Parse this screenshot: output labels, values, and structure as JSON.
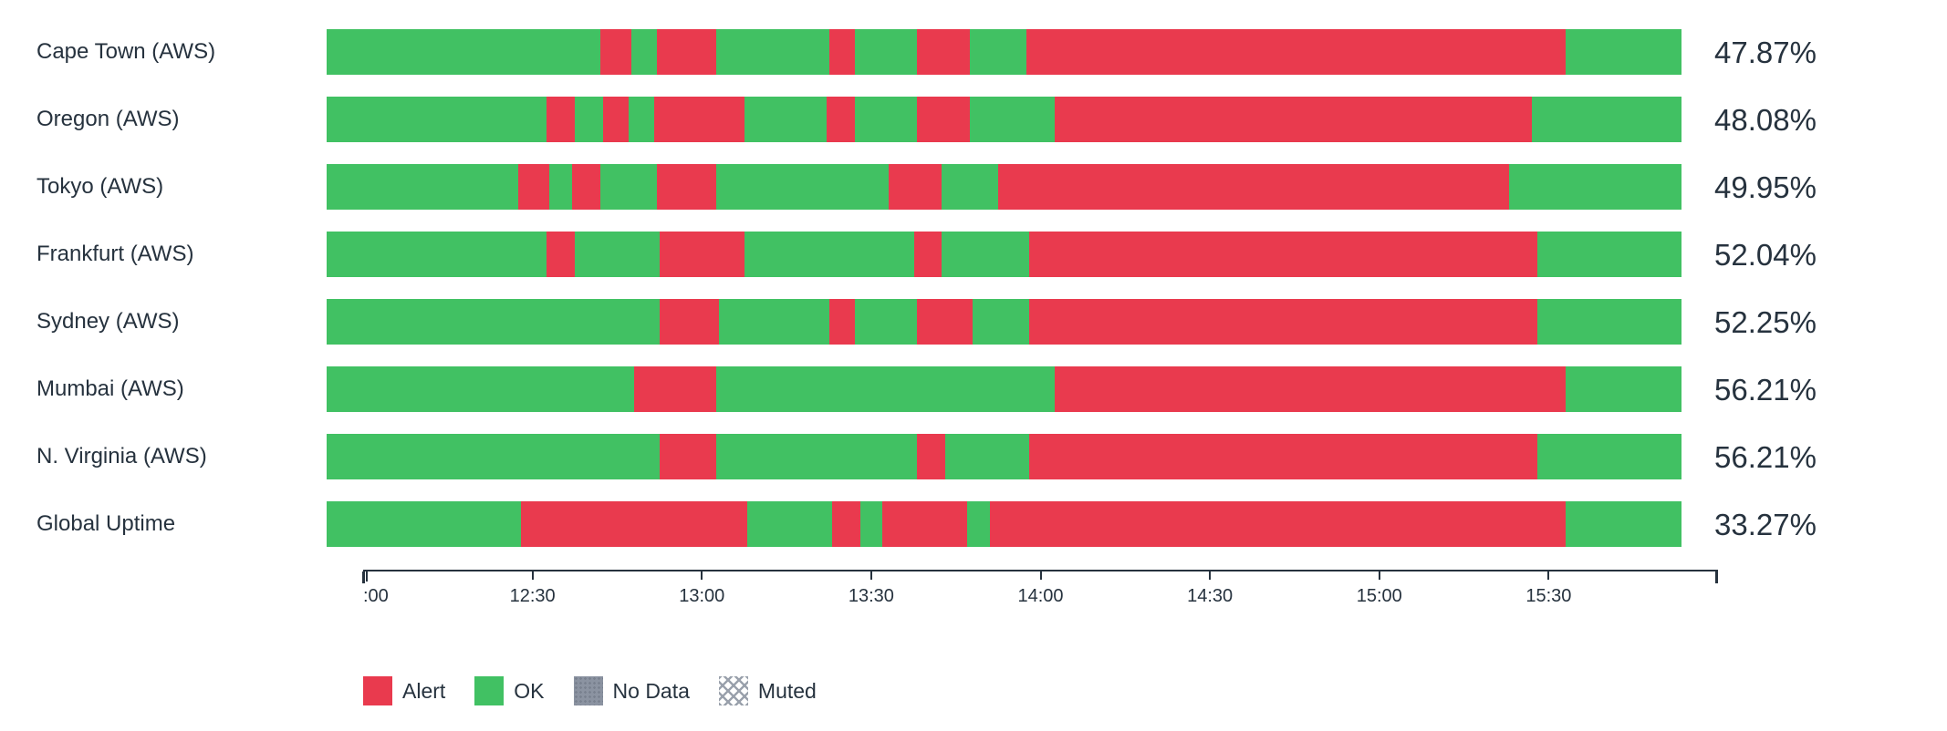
{
  "chart_data": {
    "type": "bar",
    "variant": "horizontal-state-timeline",
    "title": "",
    "xlabel": "",
    "ylabel": "",
    "x_axis": {
      "start_minute": 0,
      "end_minute": 240,
      "start_time": "12:00",
      "end_time": "16:00",
      "ticks": [
        {
          "minute": 0,
          "label": ":00",
          "clipped": true
        },
        {
          "minute": 30,
          "label": "12:30"
        },
        {
          "minute": 60,
          "label": "13:00"
        },
        {
          "minute": 90,
          "label": "13:30"
        },
        {
          "minute": 120,
          "label": "14:00"
        },
        {
          "minute": 150,
          "label": "14:30"
        },
        {
          "minute": 180,
          "label": "15:00"
        },
        {
          "minute": 210,
          "label": "15:30"
        }
      ]
    },
    "statuses": {
      "ok": {
        "label": "OK",
        "color": "#41C163"
      },
      "alert": {
        "label": "Alert",
        "color": "#E93A4E"
      },
      "no_data": {
        "label": "No Data",
        "color": "#8B93A1"
      },
      "muted": {
        "label": "Muted",
        "color": "#9AA1AC"
      }
    },
    "rows": [
      {
        "label": "Cape Town (AWS)",
        "uptime": "47.87%",
        "segments": [
          [
            0,
            48.5,
            "ok"
          ],
          [
            48.5,
            54,
            "alert"
          ],
          [
            54,
            58.5,
            "ok"
          ],
          [
            58.5,
            69,
            "alert"
          ],
          [
            69,
            89,
            "ok"
          ],
          [
            89,
            93.5,
            "alert"
          ],
          [
            93.5,
            104.5,
            "ok"
          ],
          [
            104.5,
            114,
            "alert"
          ],
          [
            114,
            124,
            "ok"
          ],
          [
            124,
            219.5,
            "alert"
          ],
          [
            219.5,
            240,
            "ok"
          ]
        ]
      },
      {
        "label": "Oregon (AWS)",
        "uptime": "48.08%",
        "segments": [
          [
            0,
            39,
            "ok"
          ],
          [
            39,
            44,
            "alert"
          ],
          [
            44,
            49,
            "ok"
          ],
          [
            49,
            53.5,
            "alert"
          ],
          [
            53.5,
            58,
            "ok"
          ],
          [
            58,
            74,
            "alert"
          ],
          [
            74,
            88.5,
            "ok"
          ],
          [
            88.5,
            93.5,
            "alert"
          ],
          [
            93.5,
            104.5,
            "ok"
          ],
          [
            104.5,
            114,
            "alert"
          ],
          [
            114,
            129,
            "ok"
          ],
          [
            129,
            213.5,
            "alert"
          ],
          [
            213.5,
            240,
            "ok"
          ]
        ]
      },
      {
        "label": "Tokyo (AWS)",
        "uptime": "49.95%",
        "segments": [
          [
            0,
            34,
            "ok"
          ],
          [
            34,
            39.5,
            "alert"
          ],
          [
            39.5,
            43.5,
            "ok"
          ],
          [
            43.5,
            48.5,
            "alert"
          ],
          [
            48.5,
            58.5,
            "ok"
          ],
          [
            58.5,
            69,
            "alert"
          ],
          [
            69,
            99.5,
            "ok"
          ],
          [
            99.5,
            109,
            "alert"
          ],
          [
            109,
            119,
            "ok"
          ],
          [
            119,
            209.5,
            "alert"
          ],
          [
            209.5,
            240,
            "ok"
          ]
        ]
      },
      {
        "label": "Frankfurt (AWS)",
        "uptime": "52.04%",
        "segments": [
          [
            0,
            39,
            "ok"
          ],
          [
            39,
            44,
            "alert"
          ],
          [
            44,
            59,
            "ok"
          ],
          [
            59,
            74,
            "alert"
          ],
          [
            74,
            104,
            "ok"
          ],
          [
            104,
            109,
            "alert"
          ],
          [
            109,
            124.5,
            "ok"
          ],
          [
            124.5,
            214.5,
            "alert"
          ],
          [
            214.5,
            240,
            "ok"
          ]
        ]
      },
      {
        "label": "Sydney (AWS)",
        "uptime": "52.25%",
        "segments": [
          [
            0,
            59,
            "ok"
          ],
          [
            59,
            69.5,
            "alert"
          ],
          [
            69.5,
            89,
            "ok"
          ],
          [
            89,
            93.5,
            "alert"
          ],
          [
            93.5,
            104.5,
            "ok"
          ],
          [
            104.5,
            114.5,
            "alert"
          ],
          [
            114.5,
            124.5,
            "ok"
          ],
          [
            124.5,
            214.5,
            "alert"
          ],
          [
            214.5,
            240,
            "ok"
          ]
        ]
      },
      {
        "label": "Mumbai (AWS)",
        "uptime": "56.21%",
        "segments": [
          [
            0,
            54.5,
            "ok"
          ],
          [
            54.5,
            69,
            "alert"
          ],
          [
            69,
            129,
            "ok"
          ],
          [
            129,
            219.5,
            "alert"
          ],
          [
            219.5,
            240,
            "ok"
          ]
        ]
      },
      {
        "label": "N. Virginia (AWS)",
        "uptime": "56.21%",
        "segments": [
          [
            0,
            59,
            "ok"
          ],
          [
            59,
            69,
            "alert"
          ],
          [
            69,
            104.5,
            "ok"
          ],
          [
            104.5,
            109.5,
            "alert"
          ],
          [
            109.5,
            124.5,
            "ok"
          ],
          [
            124.5,
            214.5,
            "alert"
          ],
          [
            214.5,
            240,
            "ok"
          ]
        ]
      },
      {
        "label": "Global Uptime",
        "uptime": "33.27%",
        "segments": [
          [
            0,
            34.5,
            "ok"
          ],
          [
            34.5,
            74.5,
            "alert"
          ],
          [
            74.5,
            89.5,
            "ok"
          ],
          [
            89.5,
            94.5,
            "alert"
          ],
          [
            94.5,
            98.5,
            "ok"
          ],
          [
            98.5,
            113.5,
            "alert"
          ],
          [
            113.5,
            117.5,
            "ok"
          ],
          [
            117.5,
            219.5,
            "alert"
          ],
          [
            219.5,
            240,
            "ok"
          ]
        ]
      }
    ],
    "legend": [
      {
        "label": "Alert",
        "swatch": "alert"
      },
      {
        "label": "OK",
        "swatch": "ok"
      },
      {
        "label": "No Data",
        "swatch": "no_data"
      },
      {
        "label": "Muted",
        "swatch": "muted"
      }
    ],
    "layout_hints": {
      "grid": false,
      "legend_position": "bottom-left",
      "axis_line_color": "#26323E"
    }
  },
  "colors": {
    "ok_green": "#41C163",
    "alert_red": "#E93A4E",
    "no_data_gray": "#8B93A1",
    "text": "#26323E",
    "background": "#FFFFFF"
  }
}
